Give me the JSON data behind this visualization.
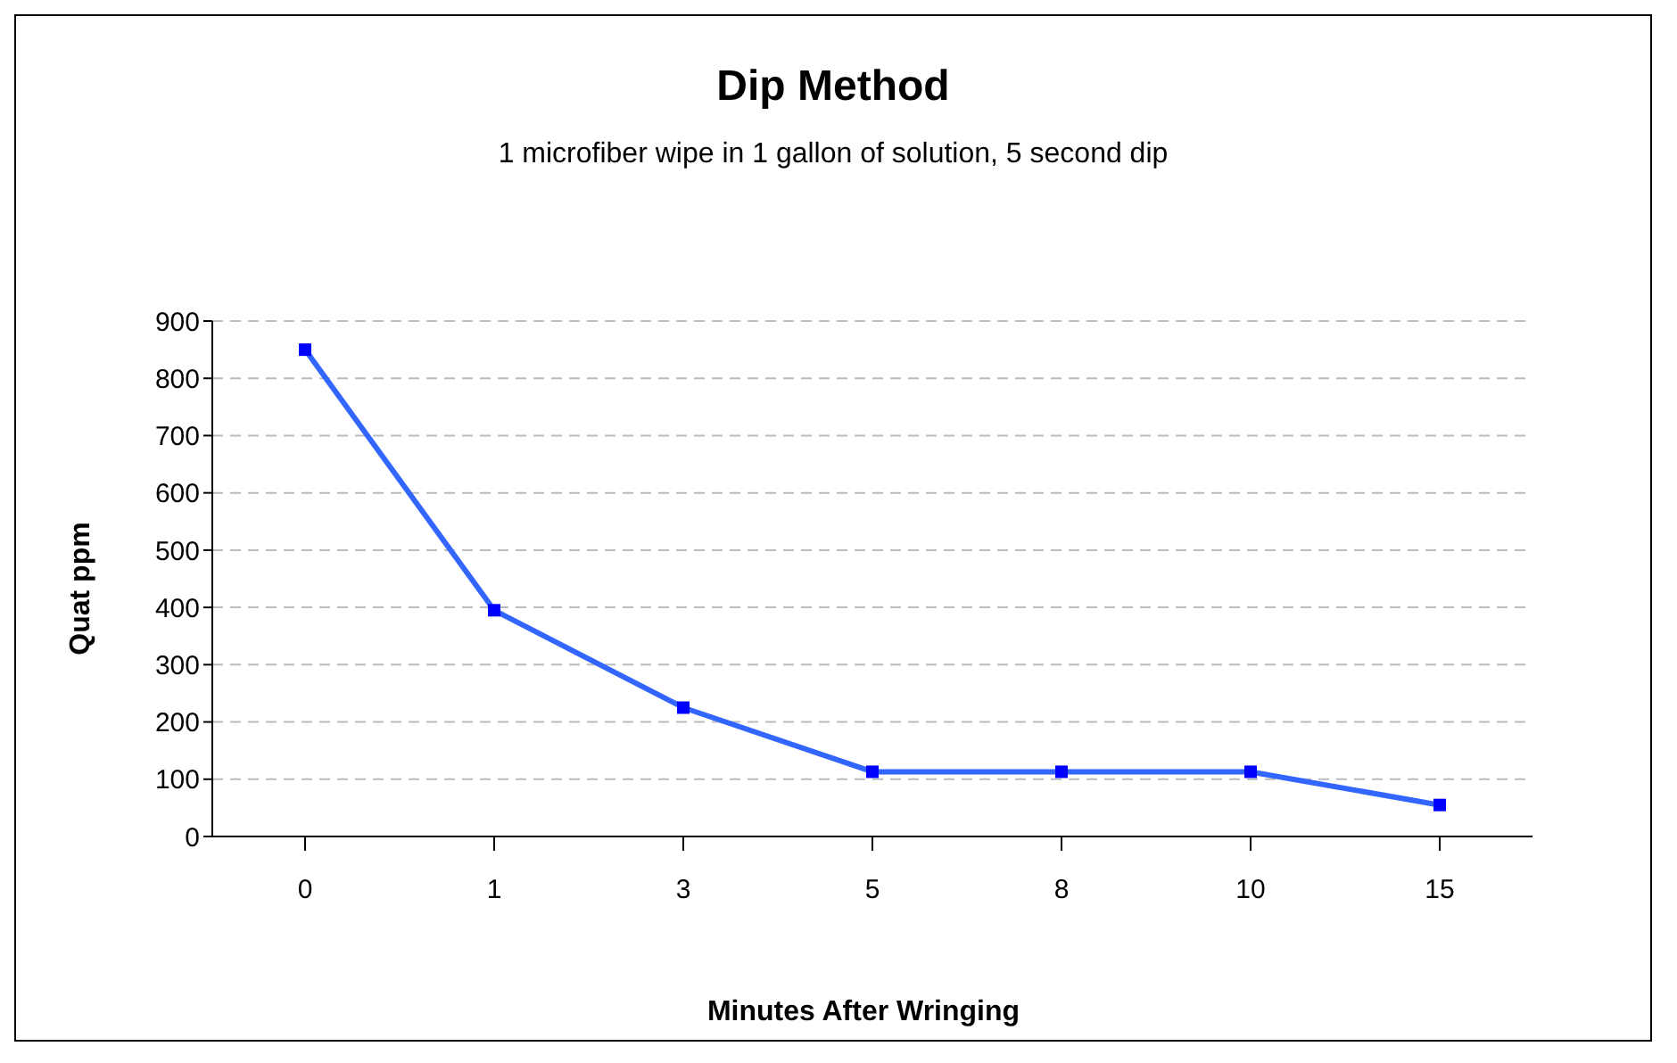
{
  "chart_data": {
    "type": "line",
    "title": "Dip Method",
    "subtitle": "1 microfiber wipe in 1 gallon of solution, 5 second dip",
    "xlabel": "Minutes After Wringing",
    "ylabel": "Quat ppm",
    "categories": [
      "0",
      "1",
      "3",
      "5",
      "8",
      "10",
      "15"
    ],
    "series": [
      {
        "color": "#3366ff",
        "values": [
          850,
          395,
          225,
          113,
          113,
          113,
          55
        ]
      }
    ],
    "ylim": [
      0,
      900
    ],
    "yticks": [
      0,
      100,
      200,
      300,
      400,
      500,
      600,
      700,
      800,
      900
    ],
    "grid": "y",
    "marker": "square",
    "line_style": "solid"
  }
}
